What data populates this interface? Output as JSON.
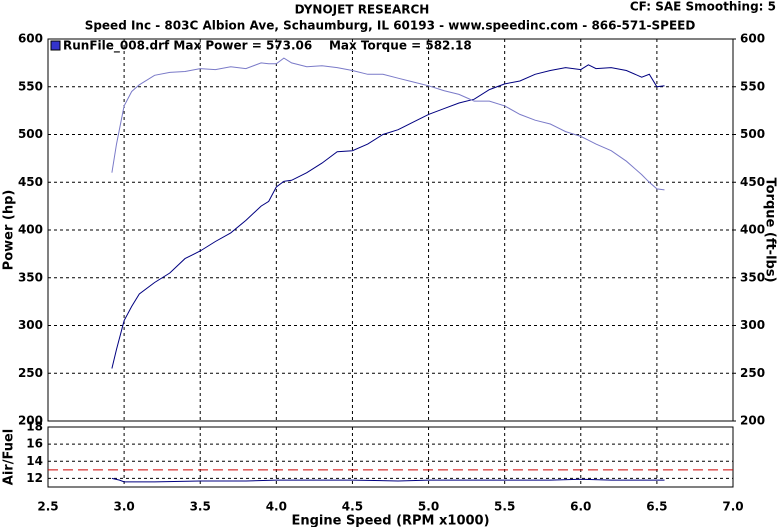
{
  "header": {
    "title": "DYNOJET RESEARCH",
    "subtitle": "Speed Inc - 803C Albion Ave, Schaumburg, IL 60193 - www.speedinc.com - 866-571-SPEED",
    "settings": "CF: SAE  Smoothing: 5"
  },
  "chart_data": [
    {
      "type": "line",
      "legend_text": "RunFile_008.drf Max Power = 573.06    Max Torque = 582.18",
      "legend_color": "#3333cc",
      "ylabel": "Power (hp)",
      "y2label": "Torque (ft-lbs)",
      "x": [
        2.92,
        2.95,
        3.0,
        3.05,
        3.1,
        3.2,
        3.3,
        3.4,
        3.5,
        3.6,
        3.7,
        3.8,
        3.9,
        3.95,
        4.0,
        4.05,
        4.1,
        4.2,
        4.3,
        4.4,
        4.5,
        4.6,
        4.7,
        4.8,
        4.9,
        5.0,
        5.1,
        5.2,
        5.3,
        5.4,
        5.5,
        5.6,
        5.7,
        5.8,
        5.9,
        6.0,
        6.05,
        6.1,
        6.2,
        6.3,
        6.4,
        6.45,
        6.5,
        6.55
      ],
      "series": [
        {
          "name": "Power",
          "color": "#000080",
          "values": [
            255,
            275,
            305,
            320,
            333,
            345,
            355,
            370,
            378,
            388,
            397,
            410,
            425,
            430,
            445,
            451,
            452,
            460,
            470,
            482,
            483,
            490,
            500,
            505,
            513,
            521,
            527,
            533,
            537,
            547,
            553,
            556,
            563,
            567,
            570,
            568,
            573,
            569,
            570,
            567,
            560,
            563,
            550,
            551
          ]
        },
        {
          "name": "Torque",
          "color": "#7a7ac8",
          "axis": "y2",
          "values": [
            460,
            490,
            530,
            545,
            552,
            562,
            565,
            566,
            569,
            568,
            571,
            569,
            575,
            574,
            574,
            580,
            575,
            571,
            572,
            570,
            567,
            563,
            563,
            559,
            555,
            551,
            546,
            542,
            535,
            535,
            530,
            521,
            515,
            511,
            503,
            498,
            494,
            490,
            483,
            472,
            458,
            450,
            443,
            442
          ]
        }
      ],
      "xlim": [
        2.5,
        7.0
      ],
      "xticks": [
        {
          "value": 2.5,
          "label": "2.5"
        },
        {
          "value": 3,
          "label": "3.0"
        },
        {
          "value": 3.5,
          "label": "3.5"
        },
        {
          "value": 4,
          "label": "4.0"
        },
        {
          "value": 4.5,
          "label": "4.5"
        },
        {
          "value": 5,
          "label": "5.0"
        },
        {
          "value": 5.5,
          "label": "5.5"
        },
        {
          "value": 6,
          "label": "6.0"
        },
        {
          "value": 6.5,
          "label": "6.5"
        },
        {
          "value": 7,
          "label": "7.0"
        }
      ],
      "ylim": [
        200,
        600
      ],
      "yticks": [
        200,
        250,
        300,
        350,
        400,
        450,
        500,
        550,
        600
      ],
      "y2lim": [
        200,
        600
      ],
      "y2ticks": [
        200,
        250,
        300,
        350,
        400,
        450,
        500,
        550,
        600
      ],
      "grid": true
    },
    {
      "type": "line",
      "ylabel": "Air/Fuel",
      "xlabel": "Engine Speed (RPM x1000)",
      "x": [
        2.92,
        2.97,
        3.0,
        3.2,
        3.5,
        3.8,
        4.0,
        4.3,
        4.5,
        4.8,
        5.0,
        5.3,
        5.5,
        5.8,
        6.0,
        6.2,
        6.4,
        6.55
      ],
      "series": [
        {
          "name": "Air/Fuel",
          "color": "#000080",
          "values": [
            12.0,
            11.8,
            11.6,
            11.6,
            11.7,
            11.7,
            11.8,
            11.8,
            11.8,
            11.7,
            11.8,
            11.8,
            11.8,
            11.8,
            11.9,
            11.8,
            11.8,
            11.8
          ]
        }
      ],
      "reference_line": {
        "value": 13,
        "color": "#cc0000"
      },
      "xlim": [
        2.5,
        7.0
      ],
      "xticks": [
        {
          "value": 2.5,
          "label": "2.5"
        },
        {
          "value": 3,
          "label": "3.0"
        },
        {
          "value": 3.5,
          "label": "3.5"
        },
        {
          "value": 4,
          "label": "4.0"
        },
        {
          "value": 4.5,
          "label": "4.5"
        },
        {
          "value": 5,
          "label": "5.0"
        },
        {
          "value": 5.5,
          "label": "5.5"
        },
        {
          "value": 6,
          "label": "6.0"
        },
        {
          "value": 6.5,
          "label": "6.5"
        },
        {
          "value": 7,
          "label": "7.0"
        }
      ],
      "ylim": [
        11,
        18
      ],
      "yticks": [
        12,
        14,
        16,
        18
      ],
      "grid": true
    }
  ]
}
